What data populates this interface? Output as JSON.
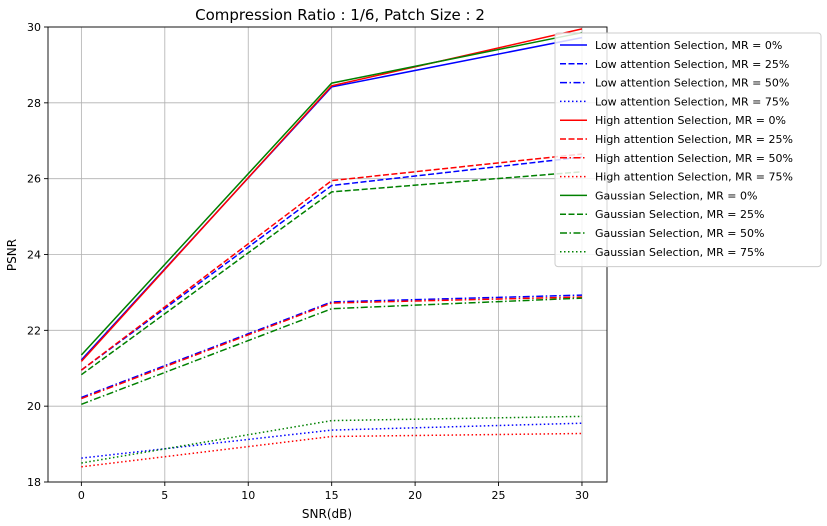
{
  "chart_data": {
    "type": "line",
    "title": "Compression Ratio : 1/6, Patch Size : 2",
    "xlabel": "SNR(dB)",
    "ylabel": "PSNR",
    "x": [
      0,
      15,
      30
    ],
    "xlim": [
      -2,
      31.5
    ],
    "ylim": [
      18,
      30
    ],
    "xticks": [
      0,
      5,
      10,
      15,
      20,
      25,
      30
    ],
    "yticks": [
      18,
      20,
      22,
      24,
      26,
      28,
      30
    ],
    "grid": true,
    "legend_position": "upper-right, partly outside plot",
    "series": [
      {
        "name": "Low attention Selection, MR = 0%",
        "color": "#0000ff",
        "style": "solid",
        "values": [
          21.22,
          28.42,
          29.72
        ]
      },
      {
        "name": "Low attention Selection, MR = 25%",
        "color": "#0000ff",
        "style": "dashed",
        "values": [
          20.95,
          25.82,
          26.57
        ]
      },
      {
        "name": "Low attention Selection, MR = 50%",
        "color": "#0000ff",
        "style": "dashdot",
        "values": [
          20.23,
          22.75,
          22.93
        ]
      },
      {
        "name": "Low attention Selection, MR = 75%",
        "color": "#0000ff",
        "style": "dotted",
        "values": [
          18.63,
          19.37,
          19.55
        ]
      },
      {
        "name": "High attention Selection, MR = 0%",
        "color": "#ff0000",
        "style": "solid",
        "values": [
          21.18,
          28.45,
          29.95
        ]
      },
      {
        "name": "High attention Selection, MR = 25%",
        "color": "#ff0000",
        "style": "dashed",
        "values": [
          20.95,
          25.95,
          26.65
        ]
      },
      {
        "name": "High attention Selection, MR = 50%",
        "color": "#ff0000",
        "style": "dashdot",
        "values": [
          20.2,
          22.72,
          22.88
        ]
      },
      {
        "name": "High attention Selection, MR = 75%",
        "color": "#ff0000",
        "style": "dotted",
        "values": [
          18.4,
          19.2,
          19.28
        ]
      },
      {
        "name": "Gaussian Selection, MR = 0%",
        "color": "#008000",
        "style": "solid",
        "values": [
          21.35,
          28.52,
          29.85
        ]
      },
      {
        "name": "Gaussian Selection, MR = 25%",
        "color": "#008000",
        "style": "dashed",
        "values": [
          20.83,
          25.65,
          26.18
        ]
      },
      {
        "name": "Gaussian Selection, MR = 50%",
        "color": "#008000",
        "style": "dashdot",
        "values": [
          20.05,
          22.57,
          22.85
        ]
      },
      {
        "name": "Gaussian Selection, MR = 75%",
        "color": "#008000",
        "style": "dotted",
        "values": [
          18.5,
          19.62,
          19.73
        ]
      }
    ]
  }
}
